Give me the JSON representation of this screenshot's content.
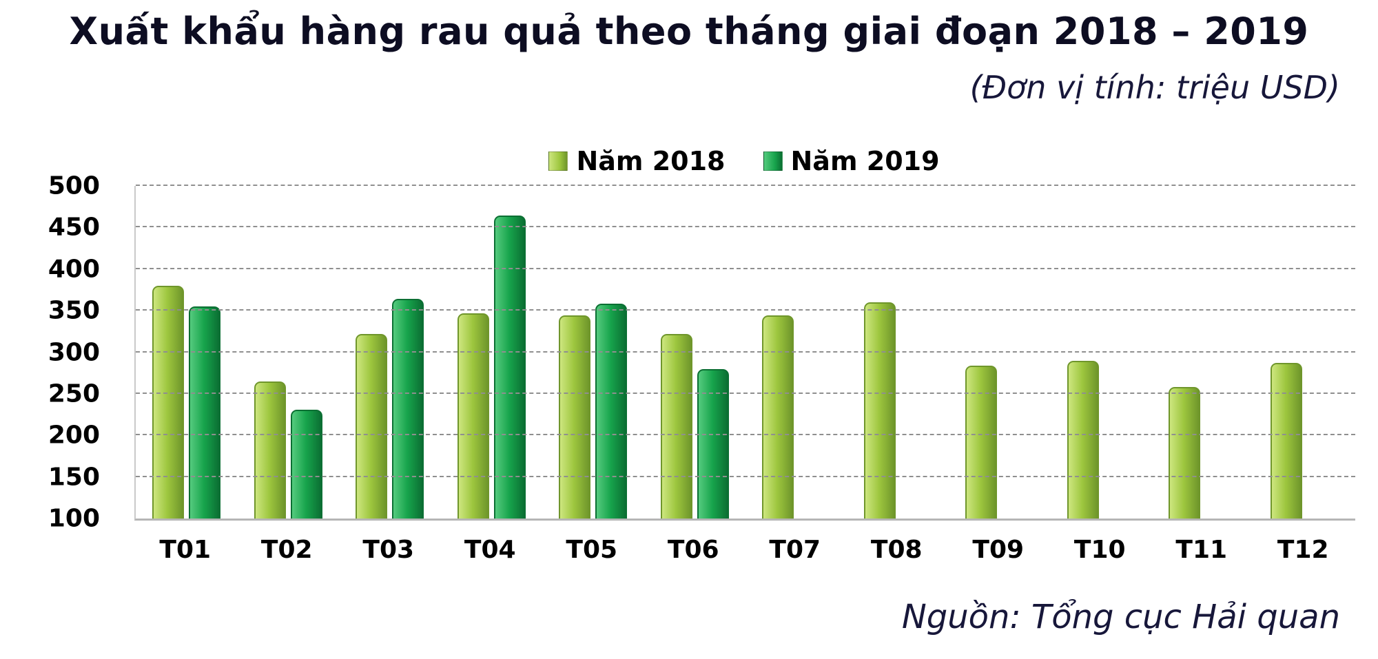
{
  "header": {
    "title": "Xuất khẩu hàng rau quả theo tháng giai đoạn 2018 – 2019",
    "unit_note": "(Đơn vị tính: triệu USD)"
  },
  "footer": {
    "source": "Nguồn: Tổng cục Hải quan"
  },
  "colors": {
    "series_2018": "#9DC63E",
    "series_2019": "#17A44C",
    "title_text": "#0d0d22",
    "note_text": "#17173a",
    "gridline": "#8f8f8f"
  },
  "chart_data": {
    "type": "bar",
    "title": "Xuất khẩu hàng rau quả theo tháng giai đoạn 2018 – 2019",
    "unit": "triệu USD",
    "xlabel": "",
    "ylabel": "",
    "ylim": [
      100,
      500
    ],
    "ytick_step": 50,
    "yticks": [
      100,
      150,
      200,
      250,
      300,
      350,
      400,
      450,
      500
    ],
    "grid": "dashed-horizontal",
    "legend_position": "top-center",
    "categories": [
      "T01",
      "T02",
      "T03",
      "T04",
      "T05",
      "T06",
      "T07",
      "T08",
      "T09",
      "T10",
      "T11",
      "T12"
    ],
    "series": [
      {
        "name": "Năm 2018",
        "color": "#9DC63E",
        "color_light": "#CDE67F",
        "color_dark": "#6F962B",
        "values": [
          380,
          265,
          322,
          347,
          344,
          322,
          344,
          360,
          284,
          290,
          258,
          287
        ]
      },
      {
        "name": "Năm 2019",
        "color": "#17A44C",
        "color_light": "#55CB7E",
        "color_dark": "#0B6F33",
        "values": [
          355,
          231,
          364,
          464,
          358,
          280,
          null,
          null,
          null,
          null,
          null,
          null
        ]
      }
    ]
  }
}
